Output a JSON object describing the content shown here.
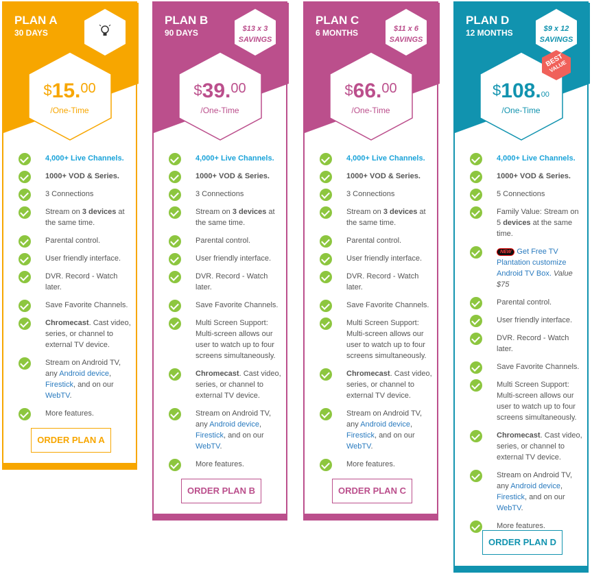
{
  "colors": {
    "plan_a": "#f7a600",
    "plan_b": "#bb4f8c",
    "plan_c": "#bb4f8c",
    "plan_d": "#1193af",
    "check": "#8dc63f",
    "link_blue": "#2a7bbf",
    "channels_blue": "#1aa3d9",
    "best_value": "#f0615a"
  },
  "plans": {
    "a": {
      "name": "PLAN A",
      "duration": "30 DAYS",
      "badge_icon": "lightbulb-icon",
      "currency": "$",
      "amount": "15.",
      "cents": "00",
      "period": "/One-Time",
      "order_label": "ORDER PLAN A",
      "features": {
        "channels": "4,000+ Live Channels.",
        "vod": "1000+ VOD & Series.",
        "connections": "3 Connections",
        "stream_pre": "Stream on ",
        "stream_bold": "3 devices",
        "stream_post": " at the same time.",
        "parental": "Parental control.",
        "friendly": "User friendly interface.",
        "dvr": "DVR. Record - Watch later.",
        "favorite": "Save Favorite Channels.",
        "chromecast_bold": "Chromecast",
        "chromecast_rest": ". Cast video, series, or channel to external TV device.",
        "android_pre": "Stream on Android TV, any ",
        "android_link": "Android device",
        "comma": ", ",
        "firestick": "Firestick",
        "and_our": ", and on our ",
        "webtv": "WebTV",
        "period_char": ".",
        "more": "More features."
      }
    },
    "b": {
      "name": "PLAN B",
      "duration": "90 DAYS",
      "badge_line1": "$13 x 3",
      "badge_line2": "SAVINGS",
      "currency": "$",
      "amount": "39.",
      "cents": "00",
      "period": "/One-Time",
      "order_label": "ORDER PLAN B",
      "features": {
        "channels": "4,000+ Live Channels.",
        "vod": "1000+ VOD & Series.",
        "connections": "3 Connections",
        "stream_pre": "Stream on ",
        "stream_bold": "3 devices",
        "stream_post": " at the same time.",
        "parental": "Parental control.",
        "friendly": "User friendly interface.",
        "dvr": "DVR. Record - Watch later.",
        "favorite": "Save Favorite Channels.",
        "multi": "Multi Screen Support: Multi-screen allows our user to watch up to four screens simultaneously.",
        "chromecast_bold": "Chromecast",
        "chromecast_rest": ". Cast video, series, or channel to external TV device.",
        "android_pre": "Stream on Android TV, any ",
        "android_link": "Android device",
        "comma": ", ",
        "firestick": "Firestick",
        "and_our": ", and on our ",
        "webtv": "WebTV",
        "period_char": ".",
        "more": "More features."
      }
    },
    "c": {
      "name": "PLAN C",
      "duration": "6 MONTHS",
      "badge_line1": "$11 x 6",
      "badge_line2": "SAVINGS",
      "currency": "$",
      "amount": "66.",
      "cents": "00",
      "period": "/One-Time",
      "order_label": "ORDER PLAN C",
      "features": {
        "channels": "4,000+ Live Channels.",
        "vod": "1000+ VOD & Series.",
        "connections": "3 Connections",
        "stream_pre": "Stream on ",
        "stream_bold": "3 devices",
        "stream_post": " at the same time.",
        "parental": "Parental control.",
        "friendly": "User friendly interface.",
        "dvr": "DVR. Record - Watch later.",
        "favorite": "Save Favorite Channels.",
        "multi": "Multi Screen Support: Multi-screen allows our user to watch up to four screens simultaneously.",
        "chromecast_bold": "Chromecast",
        "chromecast_rest": ". Cast video, series, or channel to external TV device.",
        "android_pre": "Stream on Android TV, any ",
        "android_link": "Android device",
        "comma": ", ",
        "firestick": "Firestick",
        "and_our": ", and on our ",
        "webtv": "WebTV",
        "period_char": ".",
        "more": "More features."
      }
    },
    "d": {
      "name": "PLAN D",
      "duration": "12 MONTHS",
      "badge_line1": "$9 x 12",
      "badge_line2": "SAVINGS",
      "best_line1": "BEST",
      "best_line2": "VALUE",
      "currency": "$",
      "amount": "108.",
      "cents": "00",
      "period": "/One-Time",
      "order_label": "ORDER PLAN D",
      "features": {
        "channels": "4,000+ Live Channels.",
        "vod": "1000+ VOD & Series.",
        "connections": "5 Connections",
        "family_pre": "Family Value: Stream on 5 ",
        "family_bold": "devices",
        "family_post": " at the same time.",
        "new_n": "N",
        "new_ew": "EW",
        "free_tv": "Get Free TV Plantation customize Android TV Box.",
        "value_text": " Value $75",
        "parental": "Parental control.",
        "friendly": "User friendly interface.",
        "dvr": "DVR. Record - Watch later.",
        "favorite": "Save Favorite Channels.",
        "multi": "Multi Screen Support: Multi-screen allows our user to watch up to four screens simultaneously.",
        "chromecast_bold": "Chromecast",
        "chromecast_rest": ". Cast video, series, or channel to external TV device.",
        "android_pre": "Stream on Android TV, any ",
        "android_link": "Android device",
        "comma": ", ",
        "firestick": "Firestick",
        "and_our": ", and on our ",
        "webtv": "WebTV",
        "period_char": ".",
        "more": "More features."
      }
    }
  }
}
